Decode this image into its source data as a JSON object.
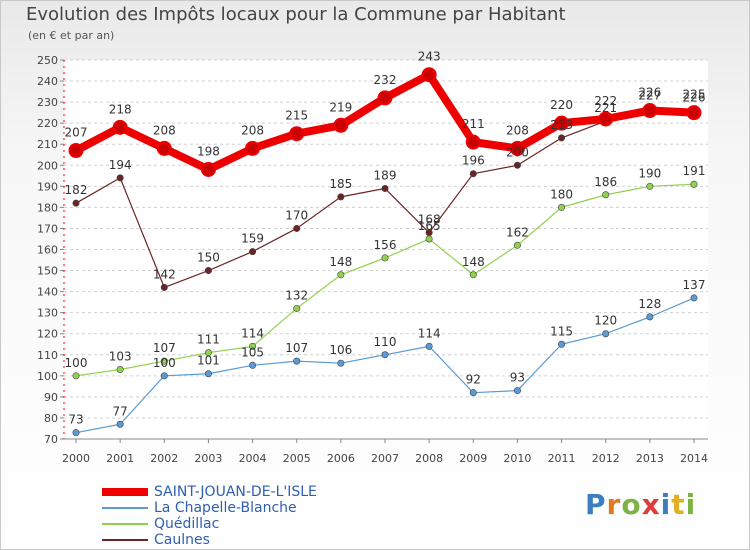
{
  "title": "Evolution des Impôts locaux pour la Commune par Habitant",
  "subtitle": "(en € et par an)",
  "logo": {
    "text": "Proxiti",
    "letters": [
      {
        "ch": "P",
        "color": "#3a7fc1"
      },
      {
        "ch": "r",
        "color": "#e07a1f"
      },
      {
        "ch": "o",
        "color": "#7cb342"
      },
      {
        "ch": "x",
        "color": "#e03b3b"
      },
      {
        "ch": "i",
        "color": "#3a7fc1"
      },
      {
        "ch": "t",
        "color": "#e0b020"
      },
      {
        "ch": "i",
        "color": "#7cb342"
      }
    ]
  },
  "chart_data": {
    "type": "line",
    "title": "Evolution des Impôts locaux pour la Commune par Habitant",
    "subtitle": "(en € et par an)",
    "x": [
      "2000",
      "2001",
      "2002",
      "2003",
      "2004",
      "2005",
      "2006",
      "2007",
      "2008",
      "2009",
      "2010",
      "2011",
      "2012",
      "2013",
      "2014"
    ],
    "ylim": [
      70,
      250
    ],
    "yticks": [
      70,
      80,
      90,
      100,
      110,
      120,
      130,
      140,
      150,
      160,
      170,
      180,
      190,
      200,
      210,
      220,
      230,
      240,
      250
    ],
    "grid": "horizontal dashed",
    "legend": "bottom-left",
    "series": [
      {
        "name": "SAINT-JOUAN-DE-L'ISLE",
        "color": "#ee0000",
        "values": [
          207,
          218,
          208,
          198,
          208,
          215,
          219,
          232,
          243,
          211,
          208,
          220,
          222,
          226,
          225
        ],
        "labels": [
          "207",
          "218",
          "208",
          "198",
          "208",
          "215",
          "219",
          "232",
          "243",
          "211",
          "208",
          "220",
          "222",
          "226",
          "225"
        ]
      },
      {
        "name": "La Chapelle-Blanche",
        "color": "#5b9bd5",
        "values": [
          73,
          77,
          100,
          101,
          105,
          107,
          106,
          110,
          114,
          92,
          93,
          115,
          120,
          128,
          137
        ],
        "labels": [
          "73",
          "77",
          "100",
          "101",
          "105",
          "107",
          "106",
          "110",
          "114",
          "92",
          "93",
          "115",
          "120",
          "128",
          "137"
        ]
      },
      {
        "name": "Quédillac",
        "color": "#92d050",
        "values": [
          100,
          103,
          107,
          111,
          114,
          132,
          148,
          156,
          165,
          148,
          162,
          180,
          186,
          190,
          191
        ],
        "labels": [
          "100",
          "103",
          "107",
          "111",
          "114",
          "132",
          "148",
          "156",
          "165",
          "148",
          "162",
          "180",
          "186",
          "190",
          "191"
        ]
      },
      {
        "name": "Caulnes",
        "color": "#6b2424",
        "values": [
          182,
          194,
          142,
          150,
          159,
          170,
          185,
          189,
          168,
          196,
          200,
          213,
          221,
          227,
          226
        ],
        "labels": [
          "182",
          "194",
          "142",
          "150",
          "159",
          "170",
          "185",
          "189",
          "168",
          "196",
          "200",
          "213",
          "221",
          "227",
          "226"
        ]
      }
    ]
  }
}
